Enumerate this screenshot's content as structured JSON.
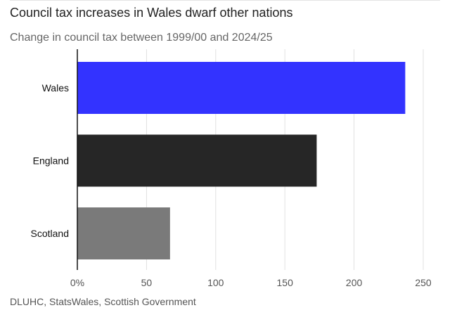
{
  "chart_data": {
    "type": "bar",
    "orientation": "horizontal",
    "title": "Council tax increases in Wales dwarf other nations",
    "subtitle": "Change in council tax between 1999/00 and 2024/25",
    "source": "DLUHC, StatsWales, Scottish Government",
    "categories": [
      "Wales",
      "England",
      "Scotland"
    ],
    "values": [
      237,
      173,
      67
    ],
    "colors": [
      "#3333ff",
      "#262626",
      "#7a7a7a"
    ],
    "xlim": [
      0,
      250
    ],
    "xticks": [
      0,
      50,
      100,
      150,
      200,
      250
    ],
    "xtick_labels": [
      "0%",
      "50",
      "100",
      "150",
      "200",
      "250"
    ],
    "grid": "vertical",
    "xlabel": "",
    "ylabel": ""
  }
}
